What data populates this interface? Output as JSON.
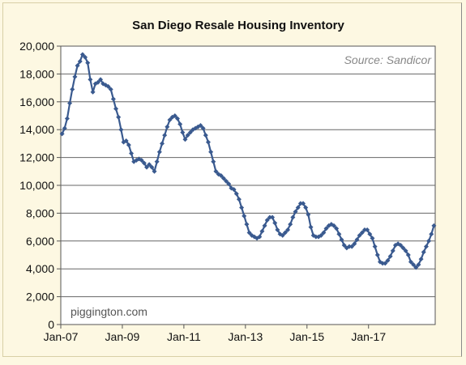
{
  "chart_data": {
    "type": "line",
    "title": "San Diego Resale Housing Inventory",
    "source_note": "Source: Sandicor",
    "credit": "piggington.com",
    "xlabel": "",
    "ylabel": "",
    "ylim": [
      0,
      20000
    ],
    "y_ticks": [
      "0",
      "2,000",
      "4,000",
      "6,000",
      "8,000",
      "10,000",
      "12,000",
      "14,000",
      "16,000",
      "18,000",
      "20,000"
    ],
    "x_ticks": [
      "Jan-07",
      "Jan-09",
      "Jan-11",
      "Jan-13",
      "Jan-15",
      "Jan-17"
    ],
    "x_start": "Jan-07",
    "grid": true,
    "colors": {
      "line": "#3a5a8f",
      "marker": "#3a5a8f",
      "plot_bg": "#ffffff",
      "page_bg": "#fdf8e2"
    },
    "series": [
      {
        "values": [
          13700,
          14100,
          14800,
          15900,
          16900,
          17800,
          18600,
          18900,
          19400,
          19200,
          18800,
          17600,
          16700,
          17300,
          17400,
          17600,
          17300,
          17200,
          17100,
          16900,
          16200,
          15500,
          14900,
          14000,
          13100,
          13200,
          12900,
          12300,
          11700,
          11800,
          11900,
          11800,
          11600,
          11300,
          11500,
          11300,
          11000,
          11700,
          12400,
          13000,
          13600,
          14200,
          14700,
          14900,
          15000,
          14800,
          14400,
          13800,
          13300,
          13600,
          13800,
          14000,
          14100,
          14200,
          14300,
          14100,
          13600,
          13100,
          12400,
          11700,
          11000,
          10800,
          10700,
          10500,
          10300,
          10100,
          9800,
          9700,
          9400,
          9000,
          8400,
          7800,
          7200,
          6600,
          6400,
          6300,
          6200,
          6300,
          6700,
          7100,
          7500,
          7700,
          7700,
          7300,
          6800,
          6500,
          6400,
          6600,
          6800,
          7200,
          7700,
          8100,
          8400,
          8700,
          8700,
          8400,
          7900,
          7000,
          6400,
          6300,
          6300,
          6400,
          6600,
          6900,
          7100,
          7200,
          7100,
          6900,
          6500,
          6100,
          5700,
          5500,
          5600,
          5600,
          5800,
          6100,
          6400,
          6600,
          6800,
          6800,
          6500,
          6200,
          5600,
          5000,
          4500,
          4400,
          4400,
          4600,
          4900,
          5300,
          5700,
          5800,
          5700,
          5500,
          5300,
          5000,
          4500,
          4300,
          4100,
          4300,
          4700,
          5200,
          5600,
          6000,
          6500,
          7100
        ]
      }
    ]
  }
}
